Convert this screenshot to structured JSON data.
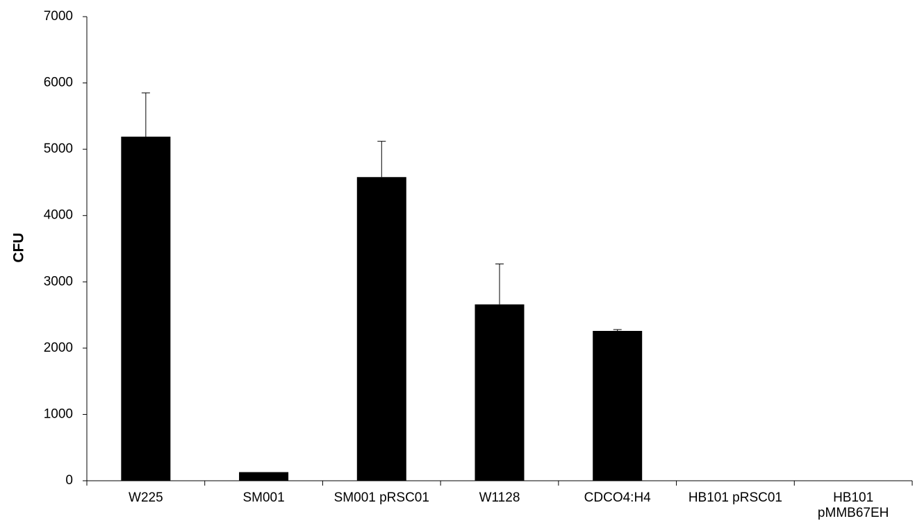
{
  "chart_data": {
    "type": "bar",
    "title": "",
    "xlabel": "",
    "ylabel": "CFU",
    "ylim": [
      0,
      7000
    ],
    "yticks": [
      0,
      1000,
      2000,
      3000,
      4000,
      5000,
      6000,
      7000
    ],
    "grid": false,
    "legend": "none",
    "categories": [
      [
        "W225"
      ],
      [
        "SM001"
      ],
      [
        "SM001 pRSC01"
      ],
      [
        "W1128"
      ],
      [
        "CDCO4:H4"
      ],
      [
        "HB101 pRSC01"
      ],
      [
        "HB101",
        "pMMB67EH"
      ]
    ],
    "values": [
      5190,
      130,
      4580,
      2660,
      2260,
      0,
      0
    ],
    "error_upper": [
      660,
      0,
      540,
      610,
      20,
      0,
      0
    ],
    "colors": {
      "bar": "#000000",
      "axis": "#000000"
    }
  }
}
